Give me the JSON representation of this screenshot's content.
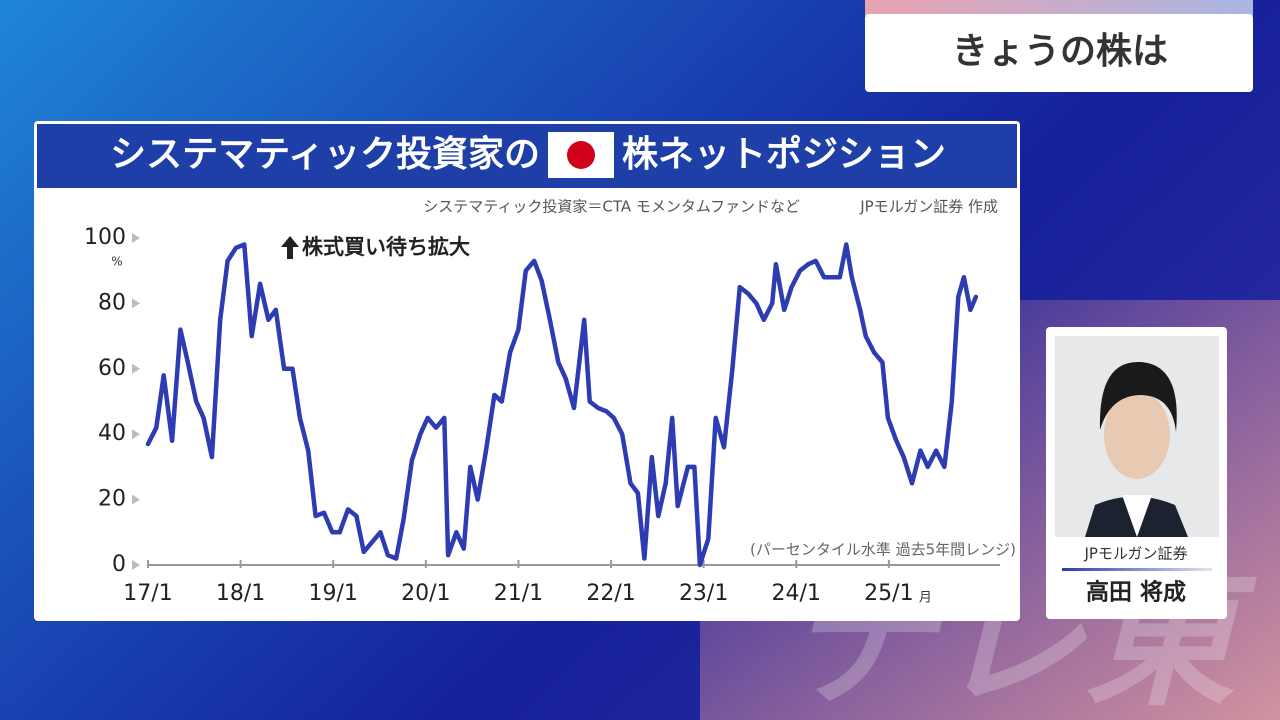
{
  "header": {
    "title": "きょうの株は"
  },
  "speaker": {
    "company": "JPモルガン証券",
    "name": "高田 将成"
  },
  "watermark": "テレ東",
  "chart_data": {
    "type": "line",
    "title_before_flag": "システマティック投資家の",
    "title_after_flag": "株ネットポジション",
    "subtitle": "システマティック投資家＝CTA モメンタムファンドなど",
    "source": "JPモルガン証券 作成",
    "annotation": "株式買い待ち拡大",
    "note": "(パーセンタイル水準 過去5年間レンジ)",
    "y_unit": "%",
    "x_unit": "月",
    "color": "#2e3cb4",
    "x": [
      17.0,
      17.09,
      17.17,
      17.26,
      17.35,
      17.43,
      17.52,
      17.6,
      17.69,
      17.78,
      17.86,
      17.95,
      18.04,
      18.12,
      18.21,
      18.3,
      18.38,
      18.47,
      18.56,
      18.64,
      18.73,
      18.81,
      18.9,
      18.99,
      19.07,
      19.16,
      19.25,
      19.33,
      19.42,
      19.51,
      19.59,
      19.68,
      19.76,
      19.85,
      19.94,
      20.02,
      20.11,
      20.2,
      20.24,
      20.33,
      20.41,
      20.48,
      20.56,
      20.65,
      20.74,
      20.82,
      20.91,
      21.0,
      21.08,
      21.17,
      21.25,
      21.34,
      21.43,
      21.51,
      21.6,
      21.71,
      21.77,
      21.86,
      21.95,
      22.03,
      22.12,
      22.21,
      22.29,
      22.36,
      22.44,
      22.51,
      22.59,
      22.66,
      22.72,
      22.83,
      22.9,
      22.96,
      23.05,
      23.13,
      23.22,
      23.31,
      23.39,
      23.48,
      23.57,
      23.65,
      23.74,
      23.78,
      23.87,
      23.95,
      24.04,
      24.13,
      24.21,
      24.3,
      24.39,
      24.47,
      24.54,
      24.6,
      24.69,
      24.75,
      24.84,
      24.93,
      24.99,
      25.08,
      25.16,
      25.25,
      25.34,
      25.42,
      25.51,
      25.6,
      25.68,
      25.75,
      25.81,
      25.88,
      25.94
    ],
    "values": [
      37,
      42,
      58,
      38,
      72,
      62,
      50,
      45,
      33,
      75,
      93,
      97,
      98,
      70,
      86,
      75,
      78,
      60,
      60,
      45,
      35,
      15,
      16,
      10,
      10,
      17,
      15,
      4,
      7,
      10,
      3,
      2,
      14,
      32,
      40,
      45,
      42,
      45,
      3,
      10,
      5,
      30,
      20,
      35,
      52,
      50,
      65,
      72,
      90,
      93,
      87,
      75,
      62,
      57,
      48,
      75,
      50,
      48,
      47,
      45,
      40,
      25,
      22,
      2,
      33,
      15,
      25,
      45,
      18,
      30,
      30,
      0,
      8,
      45,
      36,
      60,
      85,
      83,
      80,
      75,
      80,
      92,
      78,
      85,
      90,
      92,
      93,
      88,
      88,
      88,
      98,
      88,
      78,
      70,
      65,
      62,
      45,
      38,
      33,
      25,
      35,
      30,
      35,
      30,
      50,
      82,
      88,
      78,
      82
    ],
    "xlim": [
      17,
      26.2
    ],
    "ylim": [
      0,
      100
    ],
    "xticks": [
      {
        "value": 17,
        "label": "17/1"
      },
      {
        "value": 18,
        "label": "18/1"
      },
      {
        "value": 19,
        "label": "19/1"
      },
      {
        "value": 20,
        "label": "20/1"
      },
      {
        "value": 21,
        "label": "21/1"
      },
      {
        "value": 22,
        "label": "22/1"
      },
      {
        "value": 23,
        "label": "23/1"
      },
      {
        "value": 24,
        "label": "24/1"
      },
      {
        "value": 25,
        "label": "25/1"
      }
    ],
    "yticks": [
      0,
      20,
      40,
      60,
      80,
      100
    ]
  }
}
